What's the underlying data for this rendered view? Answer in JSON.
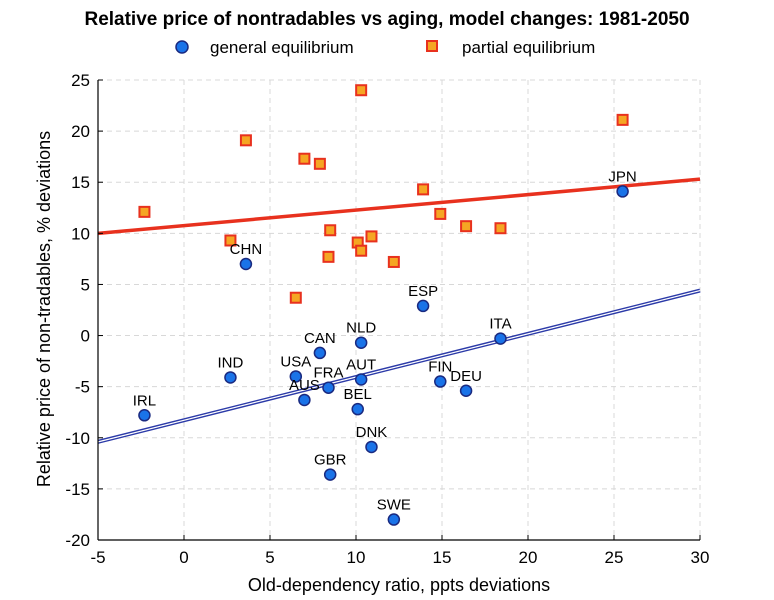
{
  "chart_data": {
    "type": "scatter",
    "title": "Relative price of nontradables vs aging, model changes: 1981-2050",
    "xlabel": "Old-dependency ratio, ppts deviations",
    "ylabel": "Relative price of non-tradables, % deviations",
    "xlim": [
      -5,
      30
    ],
    "ylim": [
      -20,
      25
    ],
    "xticks": [
      -5,
      0,
      5,
      10,
      15,
      20,
      25,
      30
    ],
    "yticks": [
      -20,
      -15,
      -10,
      -5,
      0,
      5,
      10,
      15,
      20,
      25
    ],
    "grid": true,
    "legend_position": "top",
    "series": [
      {
        "name": "general equilibrium",
        "marker": "circle",
        "color": "#1a73e8",
        "edge_color": "#1a2a80",
        "fit_line": {
          "x": [
            -5,
            30
          ],
          "y": [
            -10.4,
            4.4
          ],
          "color": "#2b3aa8"
        },
        "points": [
          {
            "label": "JPN",
            "x": 25.5,
            "y": 14.1
          },
          {
            "label": "CHN",
            "x": 3.6,
            "y": 7.0
          },
          {
            "label": "ESP",
            "x": 13.9,
            "y": 2.9
          },
          {
            "label": "NLD",
            "x": 10.3,
            "y": -0.7
          },
          {
            "label": "ITA",
            "x": 18.4,
            "y": -0.3
          },
          {
            "label": "CAN",
            "x": 7.9,
            "y": -1.7
          },
          {
            "label": "IND",
            "x": 2.7,
            "y": -4.1
          },
          {
            "label": "USA",
            "x": 6.5,
            "y": -4.0
          },
          {
            "label": "AUT",
            "x": 10.3,
            "y": -4.3
          },
          {
            "label": "FIN",
            "x": 14.9,
            "y": -4.5
          },
          {
            "label": "DEU",
            "x": 16.4,
            "y": -5.4
          },
          {
            "label": "FRA",
            "x": 8.4,
            "y": -5.1
          },
          {
            "label": "AUS",
            "x": 7.0,
            "y": -6.3
          },
          {
            "label": "BEL",
            "x": 10.1,
            "y": -7.2
          },
          {
            "label": "IRL",
            "x": -2.3,
            "y": -7.8
          },
          {
            "label": "DNK",
            "x": 10.9,
            "y": -10.9
          },
          {
            "label": "GBR",
            "x": 8.5,
            "y": -13.6
          },
          {
            "label": "SWE",
            "x": 12.2,
            "y": -18.0
          }
        ]
      },
      {
        "name": "partial equilibrium",
        "marker": "square",
        "color": "#f5a623",
        "edge_color": "#e8311e",
        "fit_line": {
          "x": [
            -5,
            30
          ],
          "y": [
            10.0,
            15.3
          ],
          "color": "#e8311e"
        },
        "points": [
          {
            "x": 25.5,
            "y": 21.1
          },
          {
            "x": 10.3,
            "y": 24.0
          },
          {
            "x": 3.6,
            "y": 19.1
          },
          {
            "x": 7.0,
            "y": 17.3
          },
          {
            "x": 7.9,
            "y": 16.8
          },
          {
            "x": 13.9,
            "y": 14.3
          },
          {
            "x": -2.3,
            "y": 12.1
          },
          {
            "x": 14.9,
            "y": 11.9
          },
          {
            "x": 16.4,
            "y": 10.7
          },
          {
            "x": 18.4,
            "y": 10.5
          },
          {
            "x": 8.5,
            "y": 10.3
          },
          {
            "x": 10.9,
            "y": 9.7
          },
          {
            "x": 2.7,
            "y": 9.3
          },
          {
            "x": 10.1,
            "y": 9.1
          },
          {
            "x": 10.3,
            "y": 8.3
          },
          {
            "x": 8.4,
            "y": 7.7
          },
          {
            "x": 12.2,
            "y": 7.2
          },
          {
            "x": 6.5,
            "y": 3.7
          }
        ]
      }
    ]
  }
}
